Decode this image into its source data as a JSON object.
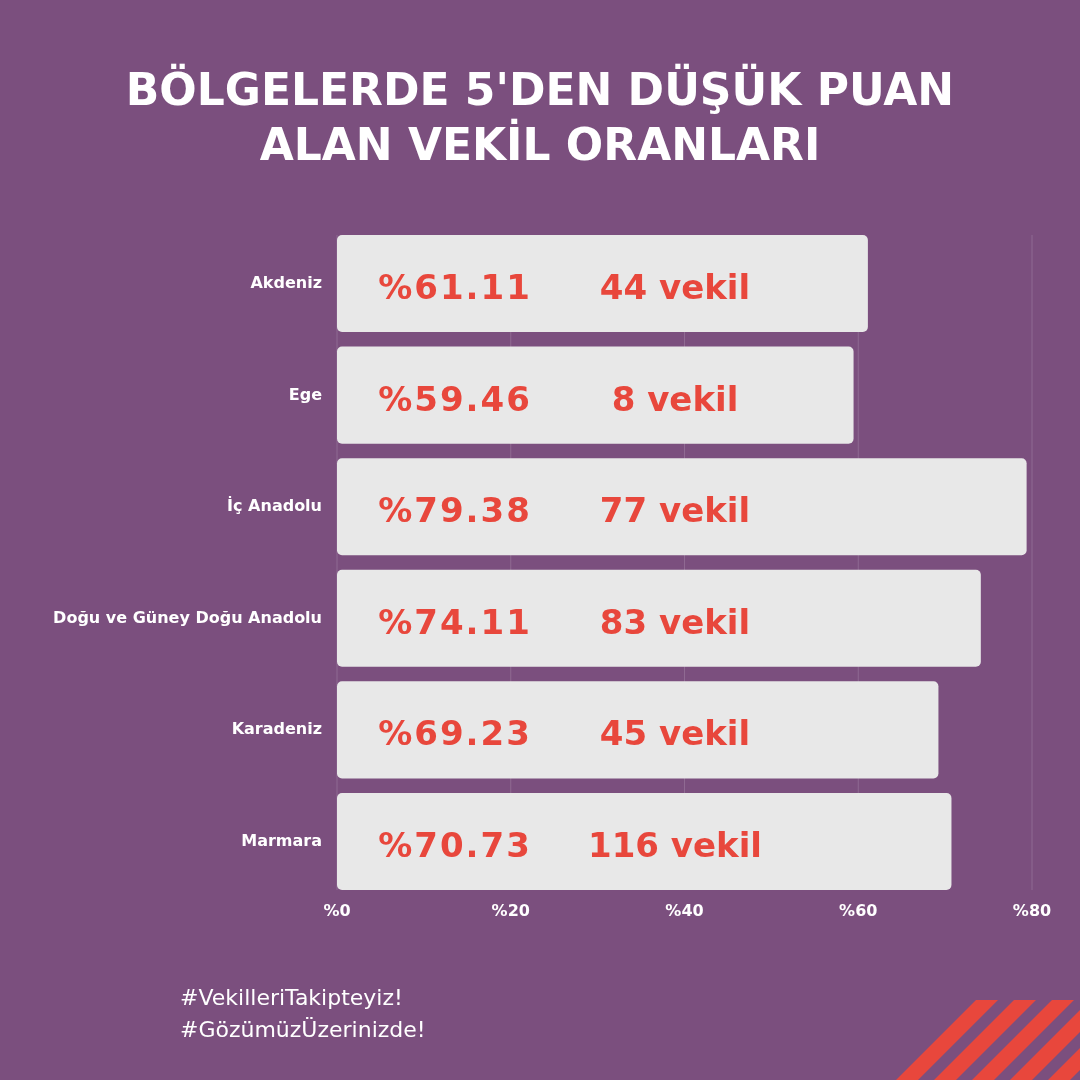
{
  "chart_data": {
    "type": "bar",
    "orientation": "horizontal",
    "title": "BÖLGELERDE 5'DEN DÜŞÜK PUAN ALAN VEKİL ORANLARI",
    "categories": [
      "Akdeniz",
      "Ege",
      "İç Anadolu",
      "Doğu ve Güney Doğu Anadolu",
      "Karadeniz",
      "Marmara"
    ],
    "values": [
      61.11,
      59.46,
      79.38,
      74.11,
      69.23,
      70.73
    ],
    "value_labels": [
      "%61.11",
      "%59.46",
      "%79.38",
      "%74.11",
      "%69.23",
      "%70.73"
    ],
    "color": "#e8e8e8",
    "xlim": [
      0,
      80
    ],
    "xticks": [
      {
        "value": 0,
        "label": "%0"
      },
      {
        "value": 20,
        "label": "%20"
      },
      {
        "value": 40,
        "label": "%40"
      },
      {
        "value": 60,
        "label": "%60"
      },
      {
        "value": 80,
        "label": "%80"
      }
    ],
    "grid": "x",
    "annotations": [
      {
        "text": "44 vekil",
        "y": "Akdeniz"
      },
      {
        "text": "8 vekil",
        "y": "Ege"
      },
      {
        "text": "77 vekil",
        "y": "İç Anadolu"
      },
      {
        "text": "83 vekil",
        "y": "Doğu ve Güney Doğu Anadolu"
      },
      {
        "text": "45 vekil",
        "y": "Karadeniz"
      },
      {
        "text": "116 vekil",
        "y": "Marmara"
      },
      "#VekilleriTakipteyiz!",
      "#GözümüzÜzerinizde!"
    ]
  }
}
